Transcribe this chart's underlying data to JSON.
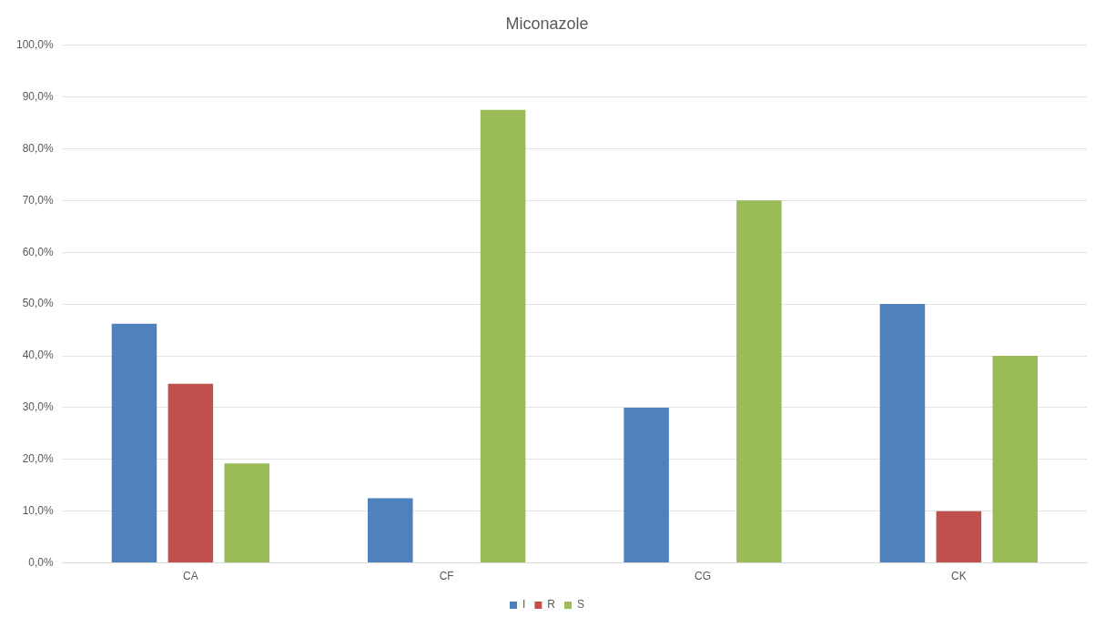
{
  "chart_data": {
    "type": "bar",
    "title": "Miconazole",
    "categories": [
      "CA",
      "CF",
      "CG",
      "CK"
    ],
    "series": [
      {
        "name": "I",
        "color": "#4f81bd",
        "values": [
          46.2,
          12.5,
          30,
          50
        ]
      },
      {
        "name": "R",
        "color": "#c0504d",
        "values": [
          34.6,
          0,
          0,
          10
        ]
      },
      {
        "name": "S",
        "color": "#9bbb59",
        "values": [
          19.2,
          87.5,
          70,
          40
        ]
      }
    ],
    "ylim": [
      0,
      100
    ],
    "yticks": [
      {
        "value": 0,
        "label": "0,0%"
      },
      {
        "value": 10,
        "label": "10,0%"
      },
      {
        "value": 20,
        "label": "20,0%"
      },
      {
        "value": 30,
        "label": "30,0%"
      },
      {
        "value": 40,
        "label": "40,0%"
      },
      {
        "value": 50,
        "label": "50,0%"
      },
      {
        "value": 60,
        "label": "60,0%"
      },
      {
        "value": 70,
        "label": "70,0%"
      },
      {
        "value": 80,
        "label": "80,0%"
      },
      {
        "value": 90,
        "label": "90,0%"
      },
      {
        "value": 100,
        "label": "100,0%"
      }
    ],
    "grid": "y",
    "legend": "bottom"
  }
}
